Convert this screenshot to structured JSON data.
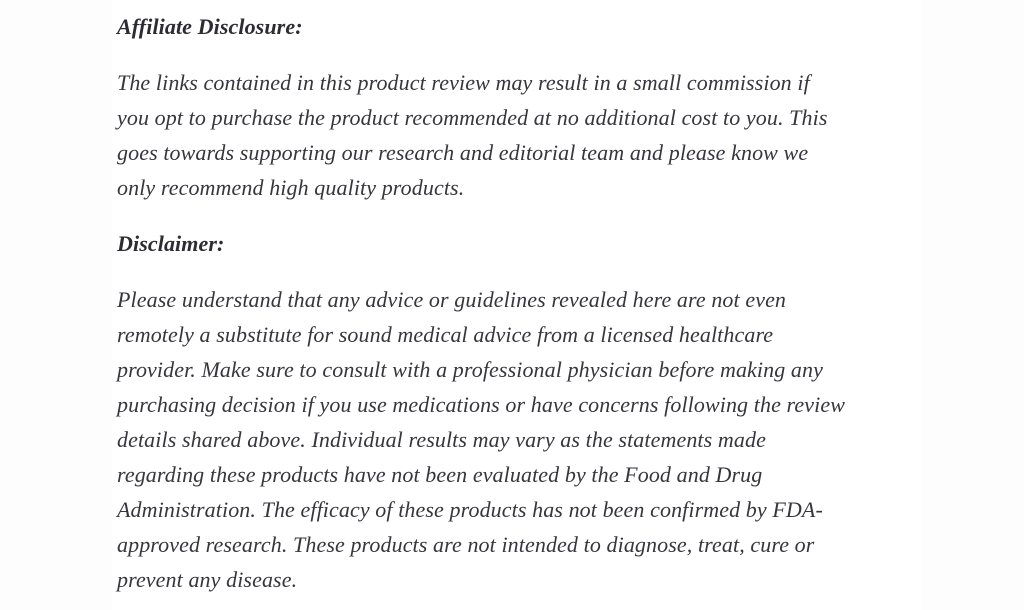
{
  "article": {
    "text_color": "#36363d",
    "heading_color": "#2c2c33",
    "background_color": "#ffffff",
    "affiliate_disclosure": {
      "heading": "Affiliate Disclosure:",
      "body_lines": [
        "The links contained in this product review may result in a small commission if",
        "you opt to purchase the product recommended at no additional cost to you. This",
        "goes towards supporting our research and editorial team and please know we",
        "only recommend high quality products."
      ]
    },
    "disclaimer": {
      "heading": "Disclaimer:",
      "body_lines": [
        "Please understand that any advice or guidelines revealed here are not even",
        "remotely a substitute for sound medical advice from a licensed healthcare",
        "provider. Make sure to consult with a professional physician before making any",
        "purchasing decision if you use medications or have concerns following the review",
        "details shared above. Individual results may vary as the statements made",
        "regarding these products have not been evaluated by the Food and Drug",
        "Administration. The efficacy of these products has not been confirmed by FDA-",
        "approved research. These products are not intended to diagnose, treat, cure or",
        "prevent any disease."
      ]
    }
  }
}
